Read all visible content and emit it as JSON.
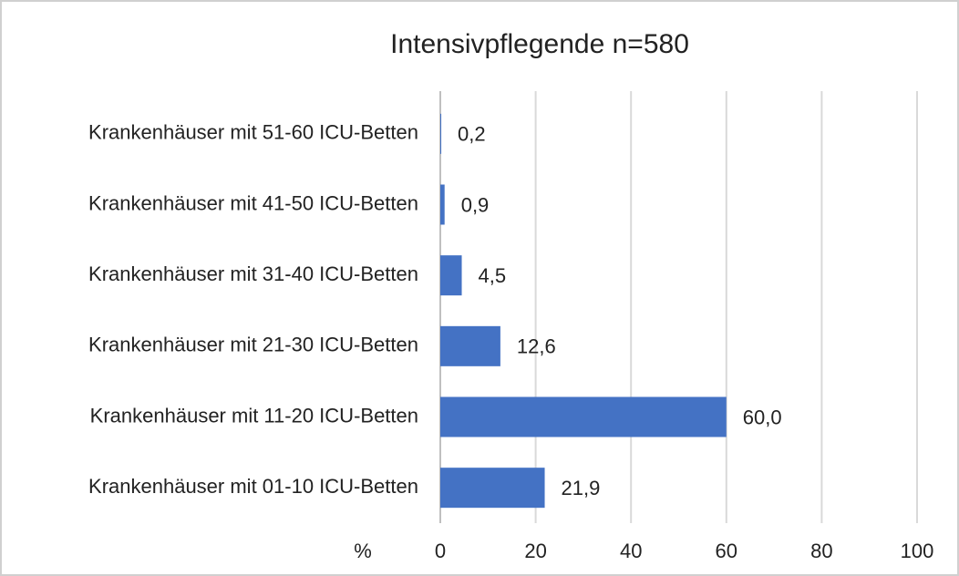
{
  "chart_data": {
    "type": "bar",
    "orientation": "horizontal",
    "title": "Intensivpflegende  n=580",
    "categories": [
      "Krankenhäuser mit 51-60 ICU-Betten",
      "Krankenhäuser mit 41-50 ICU-Betten",
      "Krankenhäuser mit 31-40 ICU-Betten",
      "Krankenhäuser mit 21-30 ICU-Betten",
      "Krankenhäuser mit 11-20 ICU-Betten",
      "Krankenhäuser mit 01-10 ICU-Betten"
    ],
    "values": [
      0.2,
      0.9,
      4.5,
      12.6,
      60.0,
      21.9
    ],
    "value_labels": [
      "0,2",
      "0,9",
      "4,5",
      "12,6",
      "60,0",
      "21,9"
    ],
    "color": "#4472c4",
    "x_label": "%",
    "xlim": [
      0,
      100
    ],
    "xticks": [
      0,
      20,
      40,
      60,
      80,
      100
    ],
    "grid": true
  }
}
